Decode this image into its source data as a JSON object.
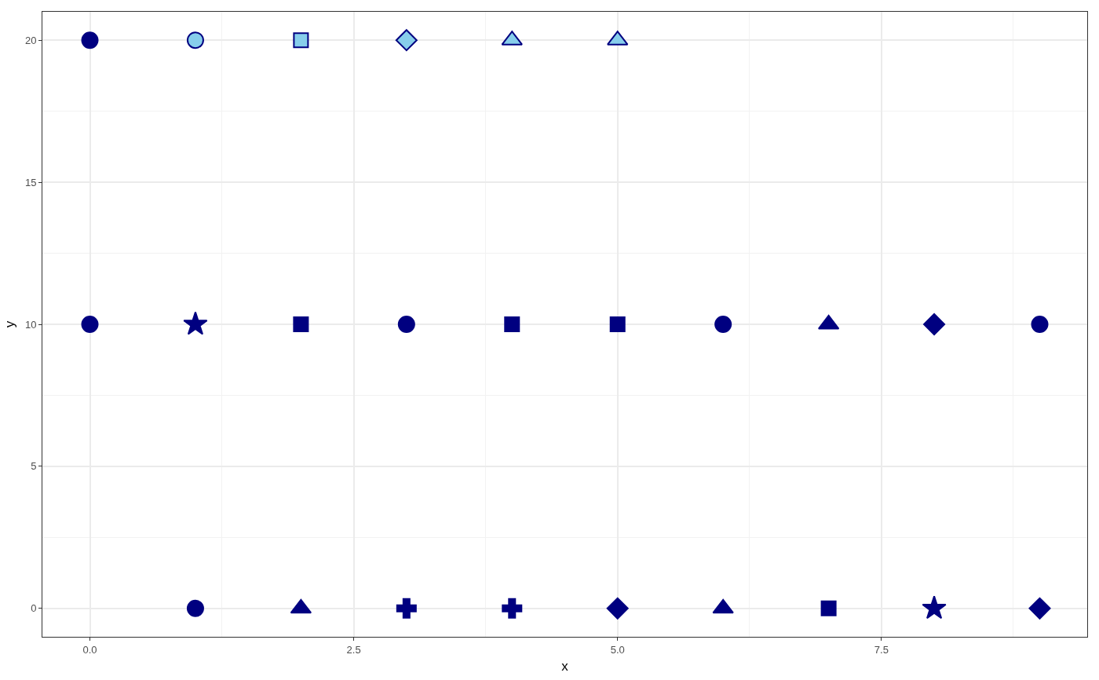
{
  "chart_data": {
    "type": "scatter",
    "xlabel": "x",
    "ylabel": "y",
    "xlim": [
      -0.45,
      9.45
    ],
    "ylim": [
      -1,
      21
    ],
    "xticks": [
      {
        "value": 0,
        "label": "0.0"
      },
      {
        "value": 2.5,
        "label": "2.5"
      },
      {
        "value": 5,
        "label": "5.0"
      },
      {
        "value": 7.5,
        "label": "7.5"
      }
    ],
    "yticks": [
      0,
      5,
      10,
      15,
      20
    ],
    "grid": true,
    "series": [
      {
        "x": [
          1
        ],
        "values": [
          0
        ],
        "color": "#000080",
        "marker": "circle"
      },
      {
        "x": [
          2
        ],
        "values": [
          0
        ],
        "color": "#000080",
        "marker": "triangle"
      },
      {
        "x": [
          3
        ],
        "values": [
          0
        ],
        "color": "#000080",
        "marker": "cross"
      },
      {
        "x": [
          4
        ],
        "values": [
          0
        ],
        "color": "#000080",
        "marker": "cross"
      },
      {
        "x": [
          5
        ],
        "values": [
          0
        ],
        "color": "#000080",
        "marker": "diamond"
      },
      {
        "x": [
          6
        ],
        "values": [
          0
        ],
        "color": "#000080",
        "marker": "triangle"
      },
      {
        "x": [
          7
        ],
        "values": [
          0
        ],
        "color": "#000080",
        "marker": "square"
      },
      {
        "x": [
          8
        ],
        "values": [
          0
        ],
        "color": "#000080",
        "marker": "star"
      },
      {
        "x": [
          9
        ],
        "values": [
          0
        ],
        "color": "#000080",
        "marker": "diamond"
      },
      {
        "x": [
          0
        ],
        "values": [
          10
        ],
        "color": "#000080",
        "marker": "circle"
      },
      {
        "x": [
          1
        ],
        "values": [
          10
        ],
        "color": "#000080",
        "marker": "star"
      },
      {
        "x": [
          2
        ],
        "values": [
          10
        ],
        "color": "#000080",
        "marker": "square"
      },
      {
        "x": [
          3
        ],
        "values": [
          10
        ],
        "color": "#000080",
        "marker": "circle"
      },
      {
        "x": [
          4
        ],
        "values": [
          10
        ],
        "color": "#000080",
        "marker": "square"
      },
      {
        "x": [
          5
        ],
        "values": [
          10
        ],
        "color": "#000080",
        "marker": "square"
      },
      {
        "x": [
          6
        ],
        "values": [
          10
        ],
        "color": "#000080",
        "marker": "circle"
      },
      {
        "x": [
          7
        ],
        "values": [
          10
        ],
        "color": "#000080",
        "marker": "triangle"
      },
      {
        "x": [
          8
        ],
        "values": [
          10
        ],
        "color": "#000080",
        "marker": "diamond"
      },
      {
        "x": [
          9
        ],
        "values": [
          10
        ],
        "color": "#000080",
        "marker": "circle"
      },
      {
        "x": [
          0
        ],
        "values": [
          20
        ],
        "color": "#000080",
        "marker": "circle"
      },
      {
        "x": [
          1
        ],
        "values": [
          20
        ],
        "color": "#87ceeb",
        "marker": "circle"
      },
      {
        "x": [
          2
        ],
        "values": [
          20
        ],
        "color": "#87ceeb",
        "marker": "square"
      },
      {
        "x": [
          3
        ],
        "values": [
          20
        ],
        "color": "#87ceeb",
        "marker": "diamond"
      },
      {
        "x": [
          4
        ],
        "values": [
          20
        ],
        "color": "#87ceeb",
        "marker": "triangle"
      },
      {
        "x": [
          5
        ],
        "values": [
          20
        ],
        "color": "#87ceeb",
        "marker": "triangle"
      }
    ]
  }
}
